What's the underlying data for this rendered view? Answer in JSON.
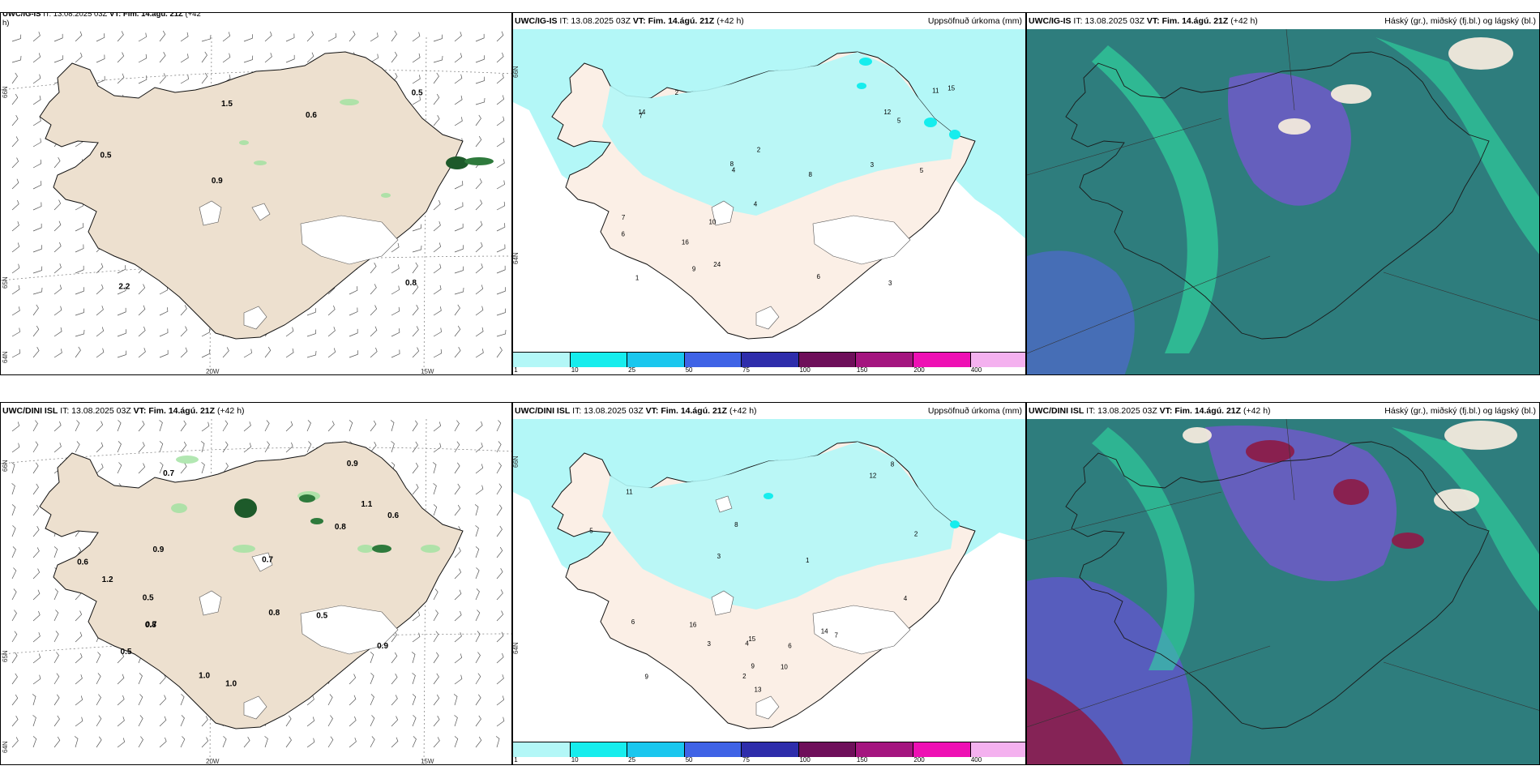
{
  "rows": [
    {
      "wind": {
        "model": "UWC/IG-IS",
        "it": "IT: 13.08.2025 03Z",
        "vt": "VT: Fim. 14.ágú. 21Z",
        "lead": "(+42",
        "lead2": "h)",
        "labels": [
          "0.8",
          "0.5",
          "0.5",
          "0.9",
          "0.6",
          "2.2",
          "1.5"
        ]
      },
      "precip": {
        "model": "UWC/IG-IS",
        "it": "IT: 13.08.2025 03Z",
        "vt": "VT: Fim. 14.ágú. 21Z",
        "lead": "(+42 h)",
        "title": "Uppsöfnuð úrkoma (mm)",
        "labels": [
          "2",
          "5",
          "4",
          "3",
          "6",
          "7",
          "8",
          "9",
          "10",
          "11",
          "12",
          "14",
          "15",
          "24",
          "1",
          "5",
          "6",
          "7",
          "8",
          "3",
          "2",
          "4",
          "16"
        ]
      },
      "cloud": {
        "model": "UWC/IG-IS",
        "it": "IT: 13.08.2025 03Z",
        "vt": "VT: Fim. 14.ágú. 21Z",
        "lead": "(+42 h)",
        "title": "Háský (gr.), miðský (fj.bl.) og lágský (bl.)"
      }
    },
    {
      "wind": {
        "model": "UWC/DINI ISL",
        "it": "IT: 13.08.2025 03Z",
        "vt": "VT: Fim. 14.ágú. 21Z",
        "lead": "(+42 h)",
        "labels": [
          "0.5",
          "0.9",
          "0.7",
          "1.1",
          "0.8",
          "0.9",
          "0.5",
          "0.7",
          "0.6",
          "0.8",
          "1.2",
          "0.5",
          "0.7",
          "1.0",
          "0.9",
          "0.6",
          "0.8",
          "1.0"
        ]
      },
      "precip": {
        "model": "UWC/DINI ISL",
        "it": "IT: 13.08.2025 03Z",
        "vt": "VT: Fim. 14.ágú. 21Z",
        "lead": "(+42 h)",
        "title": "Uppsöfnuð úrkoma (mm)",
        "labels": [
          "3",
          "6",
          "4",
          "7",
          "5",
          "8",
          "9",
          "10",
          "11",
          "14",
          "15",
          "16",
          "12",
          "13",
          "2",
          "1",
          "3",
          "6",
          "8",
          "4",
          "9",
          "2"
        ]
      },
      "cloud": {
        "model": "UWC/DINI ISL",
        "it": "IT: 13.08.2025 03Z",
        "vt": "VT: Fim. 14.ágú. 21Z",
        "lead": "(+42 h)",
        "title": "Háský (gr.), miðský (fj.bl.) og lágský (bl.)"
      }
    }
  ],
  "axes": {
    "lon": [
      "20W",
      "15W"
    ],
    "lat": [
      "66N",
      "65N",
      "64N"
    ],
    "lat_precip": [
      "66N",
      "64N"
    ]
  },
  "colorbar": {
    "ticks": [
      "1",
      "10",
      "25",
      "50",
      "75",
      "100",
      "150",
      "200",
      "400"
    ],
    "colors": [
      "#b3f7f7",
      "#16eded",
      "#1ac7ee",
      "#3f63e6",
      "#2e2dab",
      "#6e0f5a",
      "#a4157f",
      "#ee10b4",
      "#f4b1ef"
    ]
  },
  "colors": {
    "land": "#ede0cf",
    "precip_land": "#fbefe6",
    "precip_wet": "#b3f7f7",
    "sea_cloud": "#2e7d7d"
  }
}
